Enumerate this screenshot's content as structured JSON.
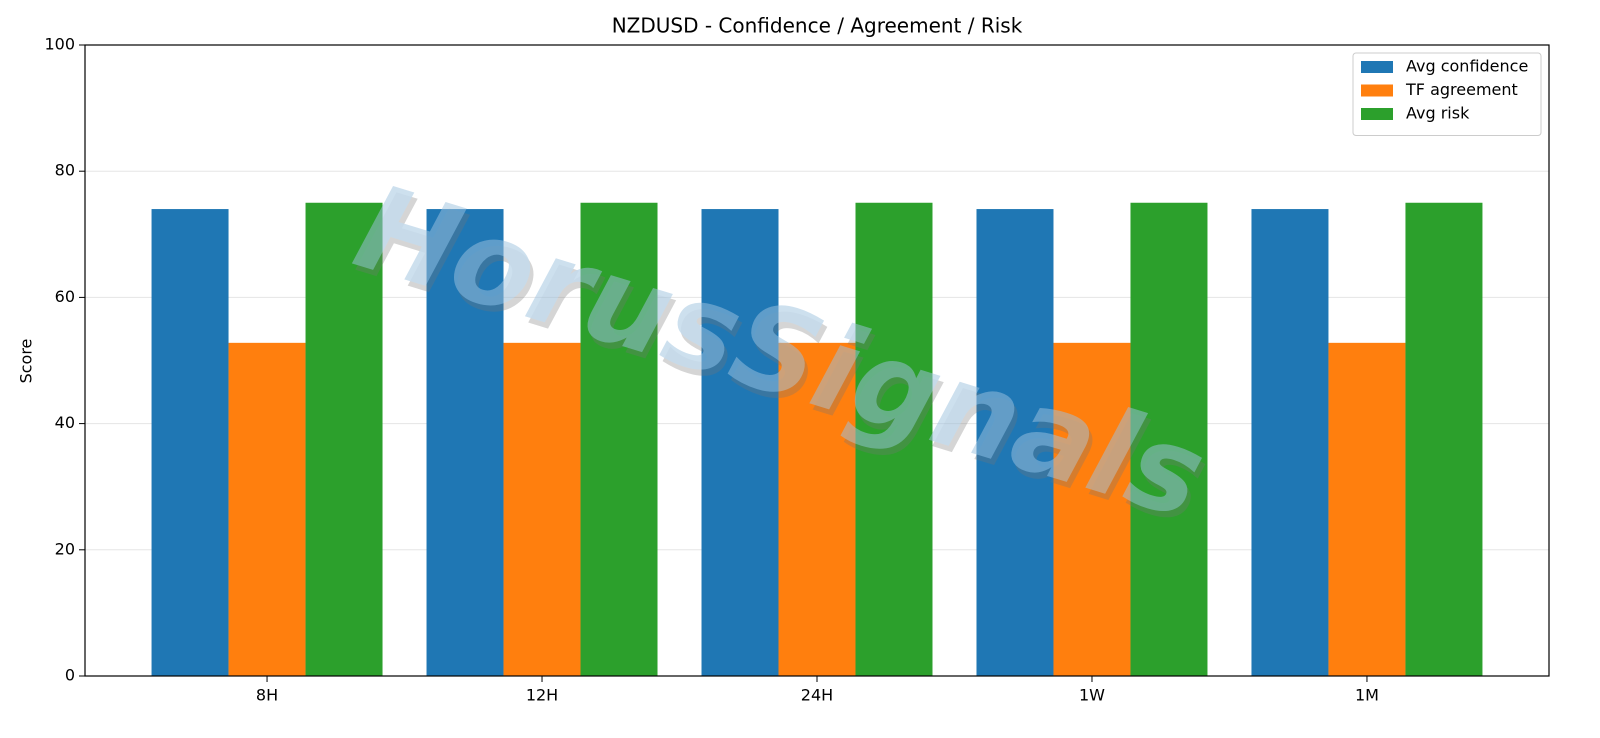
{
  "chart_data": {
    "type": "bar",
    "title": "NZDUSD - Confidence / Agreement / Risk",
    "y_label": "Score",
    "categories": [
      "8H",
      "12H",
      "24H",
      "1W",
      "1M"
    ],
    "series": [
      {
        "name": "Avg confidence",
        "color": "#1f77b4",
        "values": [
          74,
          74,
          74,
          74,
          74
        ]
      },
      {
        "name": "TF agreement",
        "color": "#ff7f0e",
        "values": [
          52.8,
          52.8,
          52.8,
          52.8,
          52.8
        ]
      },
      {
        "name": "Avg risk",
        "color": "#2ca02c",
        "values": [
          75,
          75,
          75,
          75,
          75
        ]
      }
    ],
    "ylim": [
      0,
      100
    ],
    "yticks": [
      0,
      20,
      40,
      60,
      80,
      100
    ],
    "grid": true,
    "legend": "upper right",
    "watermark": "HorusSignals"
  }
}
